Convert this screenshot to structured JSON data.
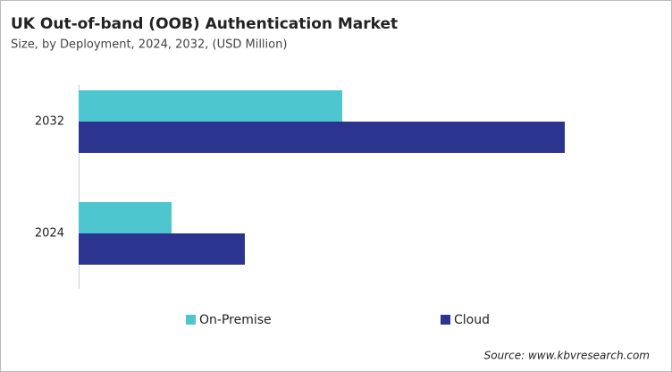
{
  "chart_data": {
    "type": "barh",
    "title": "UK Out-of-band (OOB) Authentication Market",
    "subtitle": "Size, by Deployment, 2024, 2032, (USD Million)",
    "categories": [
      "2032",
      "2024"
    ],
    "series": [
      {
        "name": "On-Premise",
        "color": "#4ec6cf",
        "values": [
          29.5,
          10.4
        ]
      },
      {
        "name": "Cloud",
        "color": "#2b3590",
        "values": [
          54.4,
          18.6
        ]
      }
    ],
    "source": "Source: www.kbvresearch.com"
  }
}
